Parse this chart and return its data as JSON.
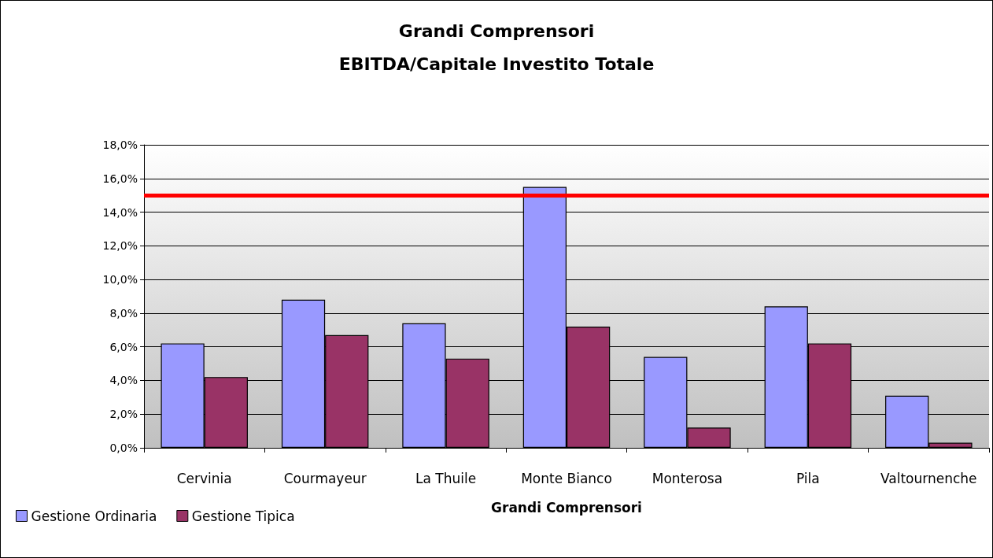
{
  "chart_data": {
    "type": "bar",
    "title": "Grandi Comprensori",
    "subtitle": "EBITDA/Capitale Investito Totale",
    "xlabel": "Grandi Comprensori",
    "categories": [
      "Cervinia",
      "Courmayeur",
      "La Thuile",
      "Monte Bianco",
      "Monterosa",
      "Pila",
      "Valtournenche"
    ],
    "series": [
      {
        "name": "Gestione Ordinaria",
        "color": "#9999ff",
        "values": [
          6.2,
          8.8,
          7.4,
          15.5,
          5.4,
          8.4,
          3.1
        ]
      },
      {
        "name": "Gestione Tipica",
        "color": "#993366",
        "values": [
          4.2,
          6.7,
          5.3,
          7.2,
          1.2,
          6.2,
          0.3
        ]
      }
    ],
    "ylim": [
      0,
      18
    ],
    "yticks": [
      {
        "value": 0,
        "label": "0,0%"
      },
      {
        "value": 2,
        "label": "2,0%"
      },
      {
        "value": 4,
        "label": "4,0%"
      },
      {
        "value": 6,
        "label": "6,0%"
      },
      {
        "value": 8,
        "label": "8,0%"
      },
      {
        "value": 10,
        "label": "10,0%"
      },
      {
        "value": 12,
        "label": "12,0%"
      },
      {
        "value": 14,
        "label": "14,0%"
      },
      {
        "value": 16,
        "label": "16,0%"
      },
      {
        "value": 18,
        "label": "18,0%"
      }
    ],
    "ref_lines": [
      {
        "axis": "y",
        "value": 15,
        "color": "#ff0000"
      }
    ],
    "grid": "y",
    "legend": "bottom left"
  }
}
